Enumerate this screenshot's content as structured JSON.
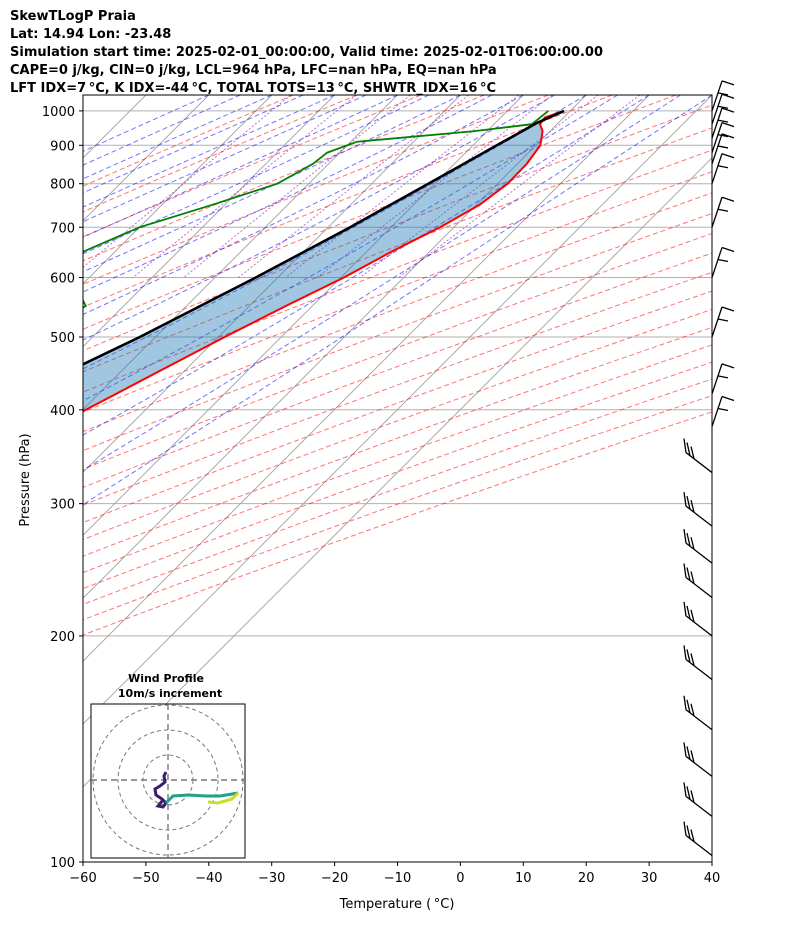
{
  "header": {
    "line1": "SkewTLogP Praia",
    "line2": "Lat: 14.94   Lon: -23.48",
    "line3": "Simulation start time: 2025-02-01_00:00:00, Valid time: 2025-02-01T06:00:00.00",
    "line4": "CAPE=0 j/kg, CIN=0 j/kg, LCL=964 hPa, LFC=nan hPa, EQ=nan hPa",
    "line5": "LFT IDX=7 °C, K IDX=-44 °C, TOTAL TOTS=13 °C, SHWTR_IDX=16 °C"
  },
  "chart_data": {
    "type": "line",
    "subtype": "skew-T log-P diagram",
    "xlabel": "Temperature ( °C)",
    "ylabel": "Pressure (hPa)",
    "xlim": [
      -60,
      40
    ],
    "ylim": [
      1050,
      100
    ],
    "y_scale": "log",
    "x_ticks": [
      "−60",
      "−50",
      "−40",
      "−30",
      "−20",
      "−10",
      "0",
      "10",
      "20",
      "30",
      "40"
    ],
    "y_ticks": [
      "100",
      "200",
      "300",
      "400",
      "500",
      "600",
      "700",
      "800",
      "900",
      "1000"
    ],
    "grid": true,
    "series": [
      {
        "role": "temperature",
        "color": "#ff0000",
        "points": [
          [
            1000,
            19.0
          ],
          [
            980,
            17.0
          ],
          [
            960,
            17.3
          ],
          [
            940,
            18.8
          ],
          [
            900,
            20.7
          ],
          [
            850,
            21.5
          ],
          [
            800,
            21.6
          ],
          [
            750,
            20.5
          ],
          [
            700,
            17.8
          ],
          [
            650,
            14.0
          ],
          [
            600,
            10.5
          ],
          [
            550,
            5.8
          ],
          [
            500,
            1.0
          ],
          [
            450,
            -4.0
          ],
          [
            400,
            -9.5
          ],
          [
            350,
            -15.5
          ],
          [
            300,
            -23.0
          ],
          [
            250,
            -30.5
          ],
          [
            200,
            -40.0
          ],
          [
            180,
            -44.5
          ],
          [
            150,
            -52.0
          ],
          [
            125,
            -58.0
          ],
          [
            100,
            -65.0
          ]
        ]
      },
      {
        "role": "dewpoint",
        "color": "#008000",
        "points": [
          [
            1000,
            16.5
          ],
          [
            960,
            16.0
          ],
          [
            940,
            8.0
          ],
          [
            910,
            -9.0
          ],
          [
            880,
            -12.0
          ],
          [
            850,
            -12.5
          ],
          [
            800,
            -15.0
          ],
          [
            750,
            -22.0
          ],
          [
            700,
            -30.0
          ],
          [
            650,
            -35.0
          ],
          [
            600,
            -33.0
          ],
          [
            550,
            -26.0
          ],
          [
            500,
            -29.0
          ],
          [
            450,
            -33.0
          ],
          [
            420,
            -45.0
          ],
          [
            385,
            -60.0
          ],
          [
            350,
            -55.0
          ],
          [
            310,
            -51.0
          ],
          [
            290,
            -53.0
          ],
          [
            270,
            -57.0
          ],
          [
            240,
            -62.0
          ],
          [
            200,
            -65.0
          ],
          [
            180,
            -69.0
          ],
          [
            150,
            -75.0
          ],
          [
            125,
            -77.0
          ],
          [
            100,
            -79.0
          ]
        ]
      },
      {
        "role": "parcel",
        "color": "#000000",
        "points": [
          [
            1000,
            19.0
          ],
          [
            964,
            16.6
          ],
          [
            900,
            13.8
          ],
          [
            850,
            11.5
          ],
          [
            800,
            9.0
          ],
          [
            700,
            3.5
          ],
          [
            600,
            -3.5
          ],
          [
            500,
            -12.5
          ],
          [
            400,
            -25.0
          ],
          [
            300,
            -43.0
          ],
          [
            250,
            -55.0
          ],
          [
            200,
            -69.0
          ],
          [
            150,
            -86.0
          ],
          [
            100,
            -108.0
          ]
        ]
      }
    ],
    "wind_barbs": [
      {
        "p": 1000,
        "type": "short"
      },
      {
        "p": 960,
        "type": "short"
      },
      {
        "p": 920,
        "type": "short"
      },
      {
        "p": 880,
        "type": "short"
      },
      {
        "p": 850,
        "type": "short"
      },
      {
        "p": 800,
        "type": "short"
      },
      {
        "p": 700,
        "type": "short"
      },
      {
        "p": 600,
        "type": "short"
      },
      {
        "p": 500,
        "type": "short"
      },
      {
        "p": 420,
        "type": "short"
      },
      {
        "p": 380,
        "type": "short"
      },
      {
        "p": 330,
        "type": "long"
      },
      {
        "p": 280,
        "type": "long"
      },
      {
        "p": 250,
        "type": "long"
      },
      {
        "p": 225,
        "type": "long"
      },
      {
        "p": 200,
        "type": "long"
      },
      {
        "p": 175,
        "type": "long"
      },
      {
        "p": 150,
        "type": "long"
      },
      {
        "p": 130,
        "type": "long"
      },
      {
        "p": 115,
        "type": "long"
      },
      {
        "p": 102,
        "type": "long"
      }
    ],
    "inset": {
      "title": "Wind Profile",
      "subtitle": "10m/s increment",
      "hodograph": [
        [
          -0.2,
          0.8
        ],
        [
          -0.4,
          0.4
        ],
        [
          -0.3,
          -0.2
        ],
        [
          -0.8,
          -0.6
        ],
        [
          -1.3,
          -0.9
        ],
        [
          -1.2,
          -1.5
        ],
        [
          -0.6,
          -1.9
        ],
        [
          -0.2,
          -2.3
        ],
        [
          -0.5,
          -2.7
        ],
        [
          -1.0,
          -2.6
        ],
        [
          -0.5,
          -2.0
        ]
      ],
      "hodograph_cyan": [
        [
          -0.2,
          -2.3
        ],
        [
          0.5,
          -1.6
        ],
        [
          2.0,
          -1.5
        ],
        [
          3.8,
          -1.6
        ],
        [
          5.2,
          -1.6
        ],
        [
          7.0,
          -1.3
        ]
      ],
      "hodograph_yellow": [
        [
          7.0,
          -1.3
        ],
        [
          6.4,
          -1.9
        ],
        [
          5.0,
          -2.3
        ],
        [
          4.0,
          -2.2
        ]
      ]
    }
  }
}
